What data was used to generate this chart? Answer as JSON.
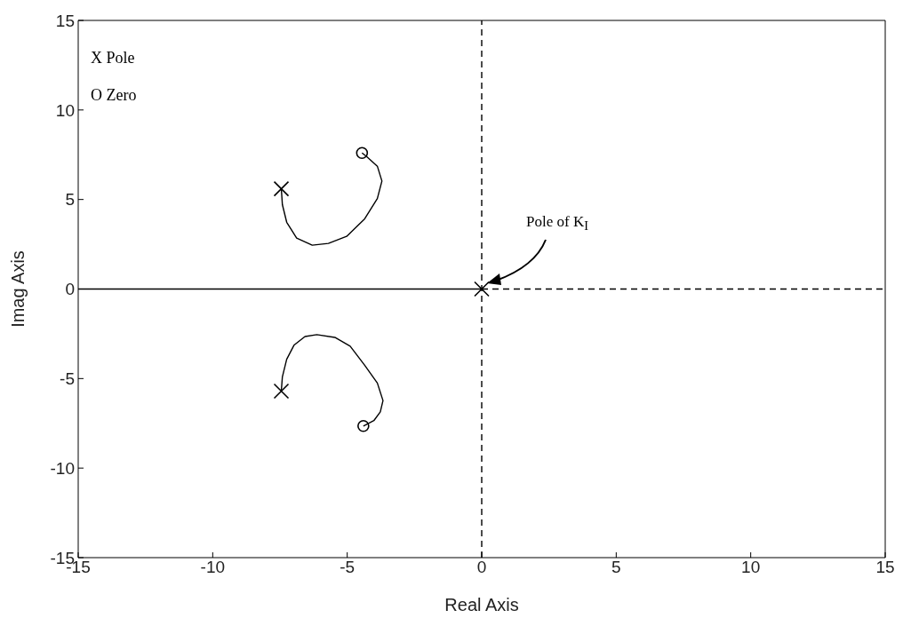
{
  "chart_data": {
    "type": "line",
    "xlabel": "Real Axis",
    "ylabel": "Imag Axis",
    "xlim": [
      -15,
      15
    ],
    "ylim": [
      -15,
      15
    ],
    "xticks": [
      -15,
      -10,
      -5,
      0,
      5,
      10,
      15
    ],
    "yticks": [
      -15,
      -10,
      -5,
      0,
      5,
      10,
      15
    ],
    "grid": false,
    "marker": "none",
    "line_style": "solid",
    "annotations": [
      "X Pole",
      "O Zero",
      "Pole of K$_{I}$"
    ],
    "series": [
      {
        "color": "#000000",
        "x": [
          -7.45,
          -7.41,
          -7.25,
          -6.88,
          -6.3,
          -5.7,
          -5.02,
          -4.35,
          -3.88,
          -3.71,
          -3.88,
          -4.28,
          -4.45
        ],
        "values": [
          5.6,
          4.71,
          3.73,
          2.84,
          2.45,
          2.55,
          2.94,
          3.92,
          5.05,
          6.03,
          6.86,
          7.4,
          7.6
        ]
      },
      {
        "color": "#000000",
        "x": [
          -7.45,
          -7.41,
          -7.25,
          -6.98,
          -6.57,
          -6.13,
          -5.46,
          -4.89,
          -4.35,
          -3.88,
          -3.67,
          -3.77,
          -4.01,
          -4.4
        ],
        "values": [
          -5.7,
          -4.9,
          -3.92,
          -3.14,
          -2.65,
          -2.55,
          -2.7,
          -3.19,
          -4.26,
          -5.25,
          -6.23,
          -6.86,
          -7.35,
          -7.65
        ]
      },
      {
        "color": "#000000",
        "x": [
          -15,
          0
        ],
        "values": [
          0,
          0
        ]
      },
      {
        "color": "#000000",
        "line_style": "dashed",
        "x": [
          0,
          0
        ],
        "values": [
          -15,
          15
        ]
      },
      {
        "color": "#000000",
        "line_style": "dashed",
        "x": [
          0,
          15
        ],
        "values": [
          0,
          0
        ]
      },
      {
        "type": "scatter",
        "marker": "cross",
        "color": "#000000",
        "x": [
          -7.45,
          -7.45,
          0
        ],
        "values": [
          5.6,
          -5.7,
          0
        ]
      },
      {
        "type": "scatter",
        "marker": "circle",
        "color": "#000000",
        "x": [
          -4.45,
          -4.4
        ],
        "values": [
          7.6,
          -7.65
        ]
      }
    ]
  }
}
